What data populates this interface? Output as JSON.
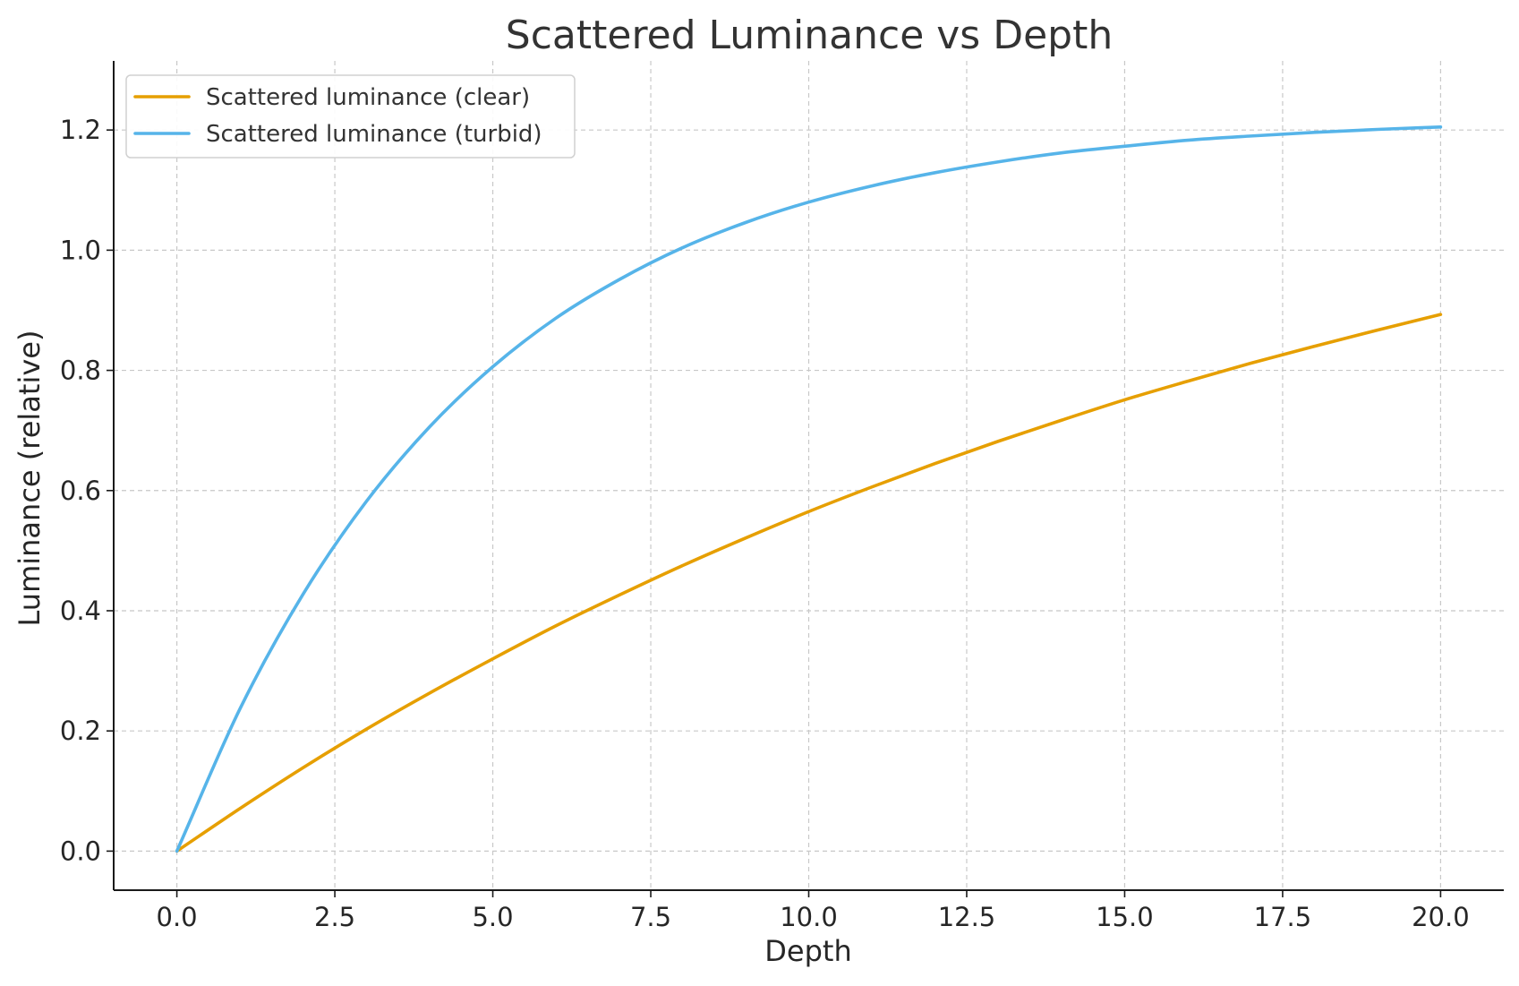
{
  "chart_data": {
    "type": "line",
    "title": "Scattered Luminance vs Depth",
    "xlabel": "Depth",
    "ylabel": "Luminance (relative)",
    "xlim": [
      -1.0,
      21.0
    ],
    "ylim": [
      -0.065,
      1.315
    ],
    "xticks": [
      0.0,
      2.5,
      5.0,
      7.5,
      10.0,
      12.5,
      15.0,
      17.5,
      20.0
    ],
    "xtick_labels": [
      "0.0",
      "2.5",
      "5.0",
      "7.5",
      "10.0",
      "12.5",
      "15.0",
      "17.5",
      "20.0"
    ],
    "yticks": [
      0.0,
      0.2,
      0.4,
      0.6,
      0.8,
      1.0,
      1.2
    ],
    "ytick_labels": [
      "0.0",
      "0.2",
      "0.4",
      "0.6",
      "0.8",
      "1.0",
      "1.2"
    ],
    "grid": true,
    "legend_position": "top-left",
    "x": [
      0,
      1,
      2,
      3,
      4,
      5,
      6,
      7,
      8,
      9,
      10,
      11,
      12,
      13,
      14,
      15,
      16,
      17,
      18,
      19,
      20
    ],
    "series": [
      {
        "name": "Scattered luminance (clear)",
        "color": "#E69F00",
        "values": [
          0.0,
          0.071,
          0.139,
          0.203,
          0.263,
          0.32,
          0.375,
          0.426,
          0.475,
          0.521,
          0.565,
          0.606,
          0.645,
          0.682,
          0.717,
          0.751,
          0.782,
          0.812,
          0.84,
          0.867,
          0.893
        ]
      },
      {
        "name": "Scattered luminance (turbid)",
        "color": "#56B4E9",
        "values": [
          0.0,
          0.237,
          0.428,
          0.582,
          0.706,
          0.806,
          0.887,
          0.951,
          1.004,
          1.046,
          1.08,
          1.107,
          1.129,
          1.147,
          1.162,
          1.173,
          1.183,
          1.19,
          1.196,
          1.201,
          1.205
        ]
      }
    ]
  }
}
